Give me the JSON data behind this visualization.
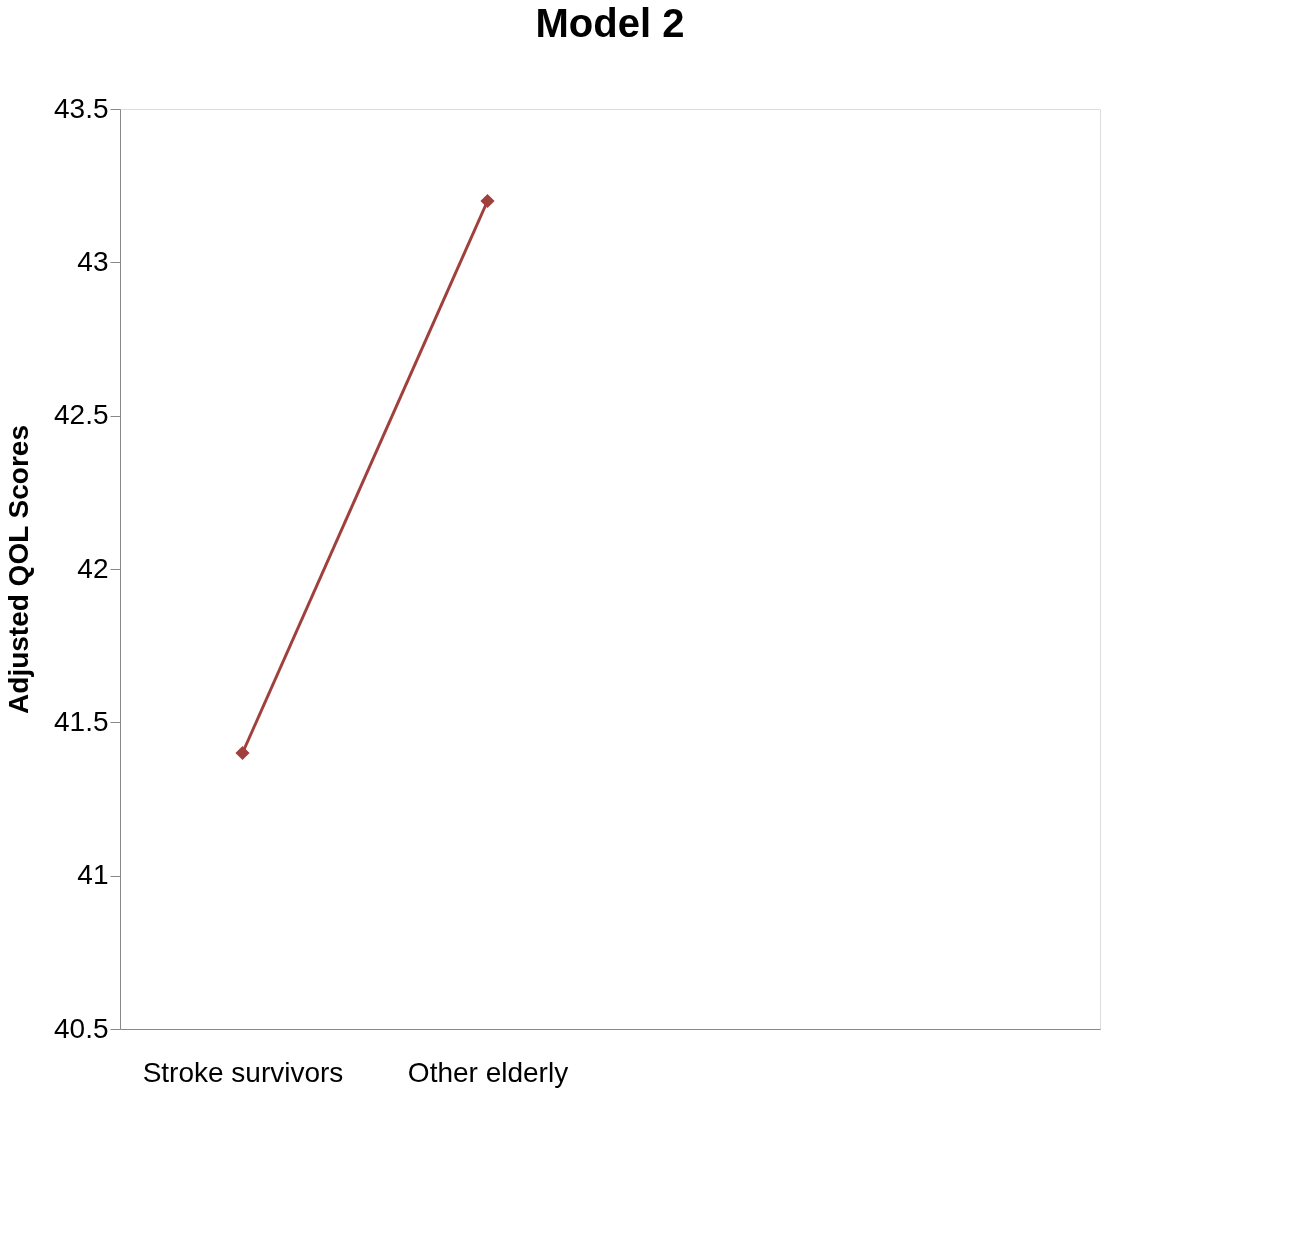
{
  "chart_data": {
    "type": "line",
    "title": "Model 2",
    "ylabel": "Adjusted QOL Scores",
    "categories": [
      "Stroke survivors",
      "Other elderly",
      null,
      null
    ],
    "series": [
      {
        "color": "#a0403c",
        "values": [
          41.4,
          43.2,
          null,
          null
        ]
      }
    ],
    "ylim": [
      40.5,
      43.5
    ],
    "yticks": [
      40.5,
      41,
      41.5,
      42,
      42.5,
      43,
      43.5
    ],
    "grid": false,
    "marker": "diamond",
    "line_style": "solid"
  }
}
